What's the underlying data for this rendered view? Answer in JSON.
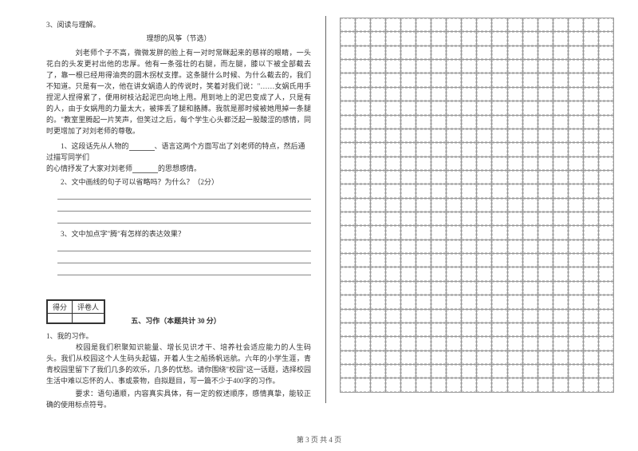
{
  "reading": {
    "number": "3、阅读与理解。",
    "title": "理想的风筝（节选）",
    "passage": "　　刘老师个子不高，微微发胖的脸上有一对时常眯起来的慈祥的眼睛，一头花白的头发更衬出他的忠厚。他有一条强壮的右腿，而左腿，膝以下被全部截去了，靠一根已经用得油亮的圆木拐杖支撑。这条腿什么时候、为什么截去的，我们不知道。只是有一次，他在讲女娲造人的传说时，笑着对我们说：\"……女娲氏用手捏泥人捏得累了，便用树枝沾起泥巴向地上甩。甩到地上的泥巴变成了人，只是有的人，由于女娲甩的力量太大，被摔丢了腿和胳膊。我就是那时候被她甩掉一条腿的。\"教室里腾起一片笑声，但笑过之后，每个学生心头都泛起一股酸涩的感情，同时更增加了对刘老师的尊敬。",
    "q1_a": "1、这段话先从人物的",
    "q1_b": "、语言这两个方面写出了刘老师的特点，然后通过描写同学们",
    "q1_c": "的心情抒发了大家对刘老师",
    "q1_d": "的思想感情。",
    "q2": "2、文中画线的句子可以省略吗？为什么？（2分）",
    "q3": "3、文中加点字\"腾\"有怎样的表达效果？"
  },
  "scorebox": {
    "h1": "得分",
    "h2": "评卷人"
  },
  "section5": {
    "title": "五、习作（本题共计 30 分）",
    "q1": "1、我的习作。",
    "p1": "　　校园是我们积聚知识能量、增长见识才干、培养社会适应能力的人生码头。我们从校园这个人生码头起锚，开着人生之船扬帆远航。六年的小学生涯，青青校园里留下了我们几多的欢乐，几多的忧愁。请你围绕\"校园\"这一话题，选择校园生活中难以忘怀的人、事或景物，自拟题目，写一篇不少于400字的习作。",
    "p2": "　　要求：语句通顺，内容真实具体，有一定的叙述顺序，感情真挚，能较正确的使用标点符号。"
  },
  "grid": {
    "rows": 27,
    "cols": 18
  },
  "footer": "第 3 页  共 4 页",
  "colors": {
    "text": "#333333",
    "line": "#888888",
    "grid": "#999999"
  }
}
